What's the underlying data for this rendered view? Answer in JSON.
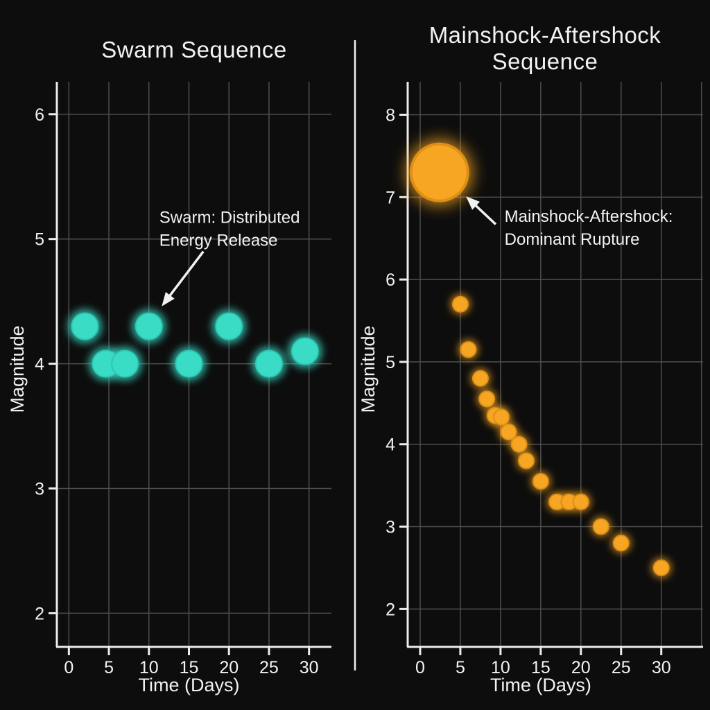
{
  "figure": {
    "background": "#0D0D0D",
    "separator_color": "#F2F2F2",
    "text_color": "#F2F2F2",
    "grid_color": "#4E4E4E",
    "axis_color": "#ECECEC"
  },
  "chart_data": [
    {
      "type": "scatter",
      "title_lines": [
        "Swarm Sequence"
      ],
      "xlabel": "Time (Days)",
      "ylabel": "Magnitude",
      "xticks": [
        0,
        5,
        10,
        15,
        20,
        25,
        30
      ],
      "yticks": [
        6,
        5,
        4,
        3,
        2
      ],
      "xgrid": [
        0,
        5,
        10,
        15,
        20,
        25,
        30
      ],
      "xlim": [
        -1.5,
        32.8
      ],
      "ylim": [
        1.73,
        6.26
      ],
      "grid": true,
      "marker": {
        "color": "#3ADCC6",
        "edge_color": "#2BC9B3",
        "radius": 19
      },
      "points": [
        {
          "day": 2,
          "magnitude": 4.3
        },
        {
          "day": 4.6,
          "magnitude": 4.0
        },
        {
          "day": 7,
          "magnitude": 4.0
        },
        {
          "day": 10,
          "magnitude": 4.3
        },
        {
          "day": 15,
          "magnitude": 4.0
        },
        {
          "day": 20,
          "magnitude": 4.3
        },
        {
          "day": 25,
          "magnitude": 4.0
        },
        {
          "day": 29.5,
          "magnitude": 4.1
        }
      ],
      "annotation": {
        "lines": [
          "Swarm: Distributed",
          "Energy Release"
        ],
        "text_day": 11.3,
        "text_mag": 5.13,
        "arrow": {
          "tail_day": 16.8,
          "tail_mag": 4.9,
          "tip_day": 11.6,
          "tip_mag": 4.46
        }
      }
    },
    {
      "type": "scatter",
      "title_lines": [
        "Mainshock-Aftershock",
        "Sequence"
      ],
      "xlabel": "Time (Days)",
      "ylabel": "Magnitude",
      "xticks": [
        0,
        5,
        10,
        15,
        20,
        25,
        30
      ],
      "yticks": [
        8,
        7,
        6,
        5,
        4,
        3,
        2
      ],
      "xgrid": [
        0,
        5,
        10,
        15,
        20,
        25,
        30,
        35
      ],
      "xlim": [
        -1.55,
        35.2
      ],
      "ylim": [
        1.54,
        8.4
      ],
      "grid": true,
      "marker": {
        "color": "#F6A623",
        "edge_color": "#DD8F16",
        "radius": 11
      },
      "points": [
        {
          "day": 2.4,
          "magnitude": 7.3,
          "label": "mainshock",
          "radius": 41
        },
        {
          "day": 5,
          "magnitude": 5.7
        },
        {
          "day": 6,
          "magnitude": 5.15
        },
        {
          "day": 7.5,
          "magnitude": 4.8
        },
        {
          "day": 8.3,
          "magnitude": 4.55
        },
        {
          "day": 9.3,
          "magnitude": 4.35
        },
        {
          "day": 10.1,
          "magnitude": 4.33
        },
        {
          "day": 11,
          "magnitude": 4.15
        },
        {
          "day": 12.3,
          "magnitude": 4.0
        },
        {
          "day": 13.2,
          "magnitude": 3.8
        },
        {
          "day": 15,
          "magnitude": 3.55
        },
        {
          "day": 17,
          "magnitude": 3.3
        },
        {
          "day": 18.5,
          "magnitude": 3.3
        },
        {
          "day": 20,
          "magnitude": 3.3
        },
        {
          "day": 22.5,
          "magnitude": 3.0
        },
        {
          "day": 25,
          "magnitude": 2.8
        },
        {
          "day": 30,
          "magnitude": 2.5
        }
      ],
      "annotation": {
        "lines": [
          "Mainshock-Aftershock:",
          "Dominant Rupture"
        ],
        "text_day": 10.5,
        "text_mag": 6.7,
        "arrow": {
          "tail_day": 9.4,
          "tail_mag": 6.67,
          "tip_day": 5.7,
          "tip_mag": 7.01
        }
      }
    }
  ]
}
